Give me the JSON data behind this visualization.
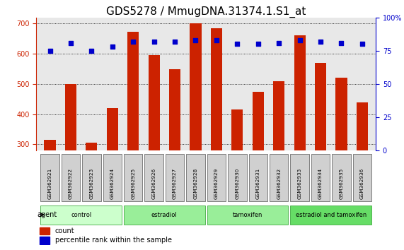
{
  "title": "GDS5278 / MmugDNA.31374.1.S1_at",
  "samples": [
    "GSM362921",
    "GSM362922",
    "GSM362923",
    "GSM362924",
    "GSM362925",
    "GSM362926",
    "GSM362927",
    "GSM362928",
    "GSM362929",
    "GSM362930",
    "GSM362931",
    "GSM362932",
    "GSM362933",
    "GSM362934",
    "GSM362935",
    "GSM362936"
  ],
  "counts": [
    315,
    500,
    305,
    420,
    672,
    595,
    550,
    700,
    685,
    415,
    475,
    510,
    660,
    570,
    520,
    440
  ],
  "percentiles": [
    75,
    81,
    75,
    78,
    82,
    82,
    82,
    83,
    83,
    80,
    80,
    81,
    83,
    82,
    81,
    80
  ],
  "groups": [
    {
      "label": "control",
      "start": 0,
      "end": 4,
      "color": "#ccffcc"
    },
    {
      "label": "estradiol",
      "start": 4,
      "end": 8,
      "color": "#99ee99"
    },
    {
      "label": "tamoxifen",
      "start": 8,
      "end": 12,
      "color": "#99ee99"
    },
    {
      "label": "estradiol and tamoxifen",
      "start": 12,
      "end": 16,
      "color": "#66dd66"
    }
  ],
  "ylim_left": [
    280,
    720
  ],
  "ylim_right": [
    0,
    100
  ],
  "yticks_left": [
    300,
    400,
    500,
    600,
    700
  ],
  "yticks_right": [
    0,
    25,
    50,
    75,
    100
  ],
  "bar_color": "#cc2200",
  "dot_color": "#0000cc",
  "bg_color": "#e8e8e8",
  "grid_color": "#888888",
  "title_fontsize": 11,
  "tick_fontsize": 7,
  "label_fontsize": 7.5
}
